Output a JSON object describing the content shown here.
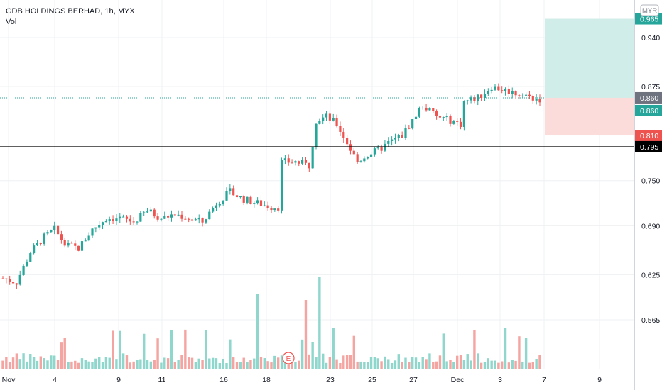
{
  "header": {
    "title": "GDB HOLDINGS BERHAD, 1h, MYX",
    "volume_label": "Vol"
  },
  "currency_badge": "MYR",
  "colors": {
    "up": "#26a69a",
    "down": "#ef5350",
    "vol_up": "#8fd6cc",
    "vol_down": "#f4a5a1",
    "target_zone": "#d1ede9",
    "stop_zone": "#fcdcdb",
    "grid": "#eef0f3"
  },
  "chart_data": {
    "type": "candlestick",
    "title": "GDB HOLDINGS BERHAD, 1h, MYX",
    "y_axis": {
      "range": [
        0.5,
        0.99
      ],
      "ticks": [
        "0.940",
        "0.875",
        "0.750",
        "0.690",
        "0.625",
        "0.565"
      ]
    },
    "x_axis": {
      "ticks": [
        "Nov",
        "4",
        "9",
        "11",
        "16",
        "18",
        "23",
        "25",
        "27",
        "Dec",
        "3",
        "7",
        "9"
      ]
    },
    "price_labels": [
      {
        "value": "0.965",
        "kind": "target"
      },
      {
        "value": "0.860",
        "kind": "last"
      },
      {
        "value": "0.860",
        "kind": "entry"
      },
      {
        "value": "0.810",
        "kind": "stop"
      },
      {
        "value": "0.795",
        "kind": "line"
      }
    ],
    "horizontal_line": 0.795,
    "position": {
      "entry": 0.86,
      "target": 0.965,
      "stop": 0.81
    },
    "events": [
      {
        "label": "E"
      }
    ],
    "anchors": [
      [
        0,
        0.62
      ],
      [
        4,
        0.615
      ],
      [
        8,
        0.655
      ],
      [
        12,
        0.675
      ],
      [
        15,
        0.685
      ],
      [
        18,
        0.665
      ],
      [
        22,
        0.66
      ],
      [
        26,
        0.685
      ],
      [
        30,
        0.7
      ],
      [
        34,
        0.7
      ],
      [
        38,
        0.695
      ],
      [
        42,
        0.71
      ],
      [
        46,
        0.7
      ],
      [
        50,
        0.705
      ],
      [
        54,
        0.7
      ],
      [
        58,
        0.695
      ],
      [
        62,
        0.72
      ],
      [
        66,
        0.735
      ],
      [
        70,
        0.725
      ],
      [
        74,
        0.72
      ],
      [
        78,
        0.715
      ],
      [
        80,
        0.715
      ],
      [
        81,
        0.775
      ],
      [
        85,
        0.775
      ],
      [
        89,
        0.77
      ],
      [
        91,
        0.83
      ],
      [
        94,
        0.835
      ],
      [
        97,
        0.825
      ],
      [
        100,
        0.8
      ],
      [
        103,
        0.775
      ],
      [
        106,
        0.785
      ],
      [
        109,
        0.79
      ],
      [
        112,
        0.8
      ],
      [
        116,
        0.81
      ],
      [
        119,
        0.83
      ],
      [
        122,
        0.85
      ],
      [
        126,
        0.835
      ],
      [
        130,
        0.83
      ],
      [
        133,
        0.825
      ],
      [
        134,
        0.855
      ],
      [
        138,
        0.86
      ],
      [
        142,
        0.875
      ],
      [
        146,
        0.87
      ],
      [
        150,
        0.865
      ],
      [
        154,
        0.86
      ],
      [
        156,
        0.858
      ]
    ],
    "candle_count": 157
  }
}
